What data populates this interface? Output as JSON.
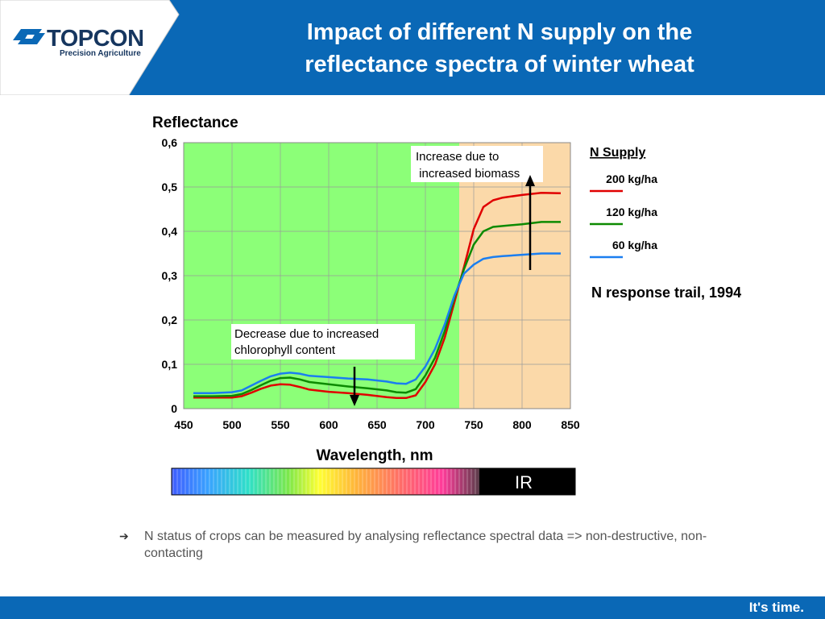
{
  "header": {
    "logo_name": "TOPCON",
    "logo_subtitle": "Precision Agriculture",
    "title_line1": "Impact of different N supply on the",
    "title_line2": "reflectance spectra of winter wheat",
    "background_color": "#0a68b6"
  },
  "chart_data": {
    "type": "line",
    "title": "",
    "ylabel": "Reflectance",
    "xlabel": "Wavelength, nm",
    "xlim": [
      450,
      850
    ],
    "ylim": [
      0,
      0.6
    ],
    "x_ticks": [
      "450",
      "500",
      "550",
      "600",
      "650",
      "700",
      "750",
      "800",
      "850"
    ],
    "y_ticks": [
      "0",
      "0,1",
      "0,2",
      "0,3",
      "0,4",
      "0,5",
      "0,6"
    ],
    "grid": true,
    "regions": [
      {
        "from": 450,
        "to": 735,
        "color": "#8cff78"
      },
      {
        "from": 735,
        "to": 850,
        "color": "#fbd9a9"
      }
    ],
    "x": [
      460,
      480,
      500,
      510,
      520,
      530,
      540,
      550,
      560,
      570,
      580,
      600,
      620,
      640,
      660,
      670,
      680,
      690,
      700,
      710,
      720,
      730,
      740,
      750,
      760,
      770,
      780,
      800,
      820,
      840
    ],
    "series": [
      {
        "name": "200 kg/ha",
        "color": "#e00000",
        "values": [
          0.025,
          0.025,
          0.025,
          0.028,
          0.036,
          0.045,
          0.052,
          0.055,
          0.054,
          0.049,
          0.043,
          0.038,
          0.035,
          0.031,
          0.026,
          0.024,
          0.024,
          0.03,
          0.06,
          0.1,
          0.16,
          0.24,
          0.32,
          0.405,
          0.455,
          0.47,
          0.476,
          0.482,
          0.487,
          0.486
        ]
      },
      {
        "name": "120 kg/ha",
        "color": "#0c8a00",
        "values": [
          0.028,
          0.028,
          0.029,
          0.033,
          0.042,
          0.053,
          0.063,
          0.069,
          0.07,
          0.066,
          0.06,
          0.055,
          0.05,
          0.046,
          0.041,
          0.037,
          0.036,
          0.044,
          0.075,
          0.115,
          0.175,
          0.25,
          0.315,
          0.37,
          0.4,
          0.41,
          0.412,
          0.416,
          0.421,
          0.421
        ]
      },
      {
        "name": "60 kg/ha",
        "color": "#1a7ef0",
        "values": [
          0.035,
          0.035,
          0.037,
          0.041,
          0.052,
          0.063,
          0.073,
          0.079,
          0.081,
          0.079,
          0.074,
          0.071,
          0.068,
          0.066,
          0.061,
          0.057,
          0.056,
          0.066,
          0.095,
          0.135,
          0.19,
          0.255,
          0.305,
          0.325,
          0.338,
          0.342,
          0.344,
          0.347,
          0.35,
          0.35
        ]
      }
    ],
    "legend_title": "N Supply",
    "legend_position": "right",
    "annotations": [
      {
        "text_line1": "Increase due to",
        "text_line2": " increased biomass"
      },
      {
        "text_line1": "Decrease due to increased",
        "text_line2": "chlorophyll content"
      }
    ],
    "side_label": "N response trail, 1994"
  },
  "spectrum_bar": {
    "ir_label": "IR"
  },
  "bullet": {
    "text": "N status of crops can be measured by analysing reflectance spectral data => non-destructive, non-contacting"
  },
  "footer": {
    "slogan": "It's time."
  }
}
